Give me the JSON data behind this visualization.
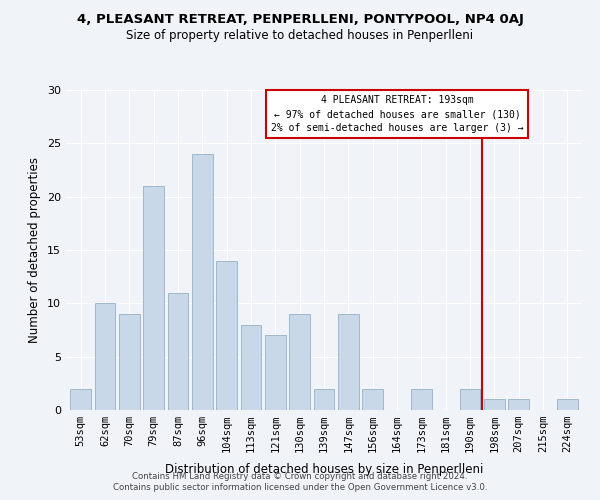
{
  "title1": "4, PLEASANT RETREAT, PENPERLLENI, PONTYPOOL, NP4 0AJ",
  "title2": "Size of property relative to detached houses in Penperlleni",
  "xlabel": "Distribution of detached houses by size in Penperlleni",
  "ylabel": "Number of detached properties",
  "bar_labels": [
    "53sqm",
    "62sqm",
    "70sqm",
    "79sqm",
    "87sqm",
    "96sqm",
    "104sqm",
    "113sqm",
    "121sqm",
    "130sqm",
    "139sqm",
    "147sqm",
    "156sqm",
    "164sqm",
    "173sqm",
    "181sqm",
    "190sqm",
    "198sqm",
    "207sqm",
    "215sqm",
    "224sqm"
  ],
  "bar_heights": [
    2,
    10,
    9,
    21,
    11,
    24,
    14,
    8,
    7,
    9,
    2,
    9,
    2,
    0,
    2,
    0,
    2,
    1,
    1,
    0,
    1
  ],
  "bar_color": "#c8d8e8",
  "bar_edge_color": "#a0b8cc",
  "vline_x": 16.5,
  "vline_color": "#cc0000",
  "annotation_title": "4 PLEASANT RETREAT: 193sqm",
  "annotation_line1": "← 97% of detached houses are smaller (130)",
  "annotation_line2": "2% of semi-detached houses are larger (3) →",
  "annotation_box_color": "#ffffff",
  "annotation_box_edge": "#cc0000",
  "ylim": [
    0,
    30
  ],
  "yticks": [
    0,
    5,
    10,
    15,
    20,
    25,
    30
  ],
  "footer1": "Contains HM Land Registry data © Crown copyright and database right 2024.",
  "footer2": "Contains public sector information licensed under the Open Government Licence v3.0.",
  "background_color": "#f0f4f8"
}
